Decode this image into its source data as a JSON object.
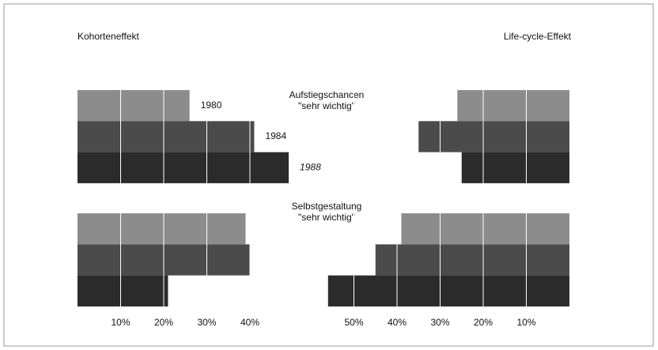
{
  "chart_data": [
    {
      "type": "bar",
      "orientation": "horizontal",
      "title": "Kohorteneffekt",
      "categories": [
        [
          "Aufstiegschancen",
          "\"sehr wichtig\""
        ],
        [
          "Selbstgestaltung",
          "\"sehr wichtig\""
        ]
      ],
      "series": [
        {
          "name": "1980",
          "color": "#8c8c8c",
          "values": [
            26,
            39
          ]
        },
        {
          "name": "1984",
          "color": "#4b4b4b",
          "values": [
            41,
            40
          ]
        },
        {
          "name": "1988",
          "color": "#2b2b2b",
          "values": [
            49,
            21
          ]
        }
      ],
      "xlim": [
        0,
        50
      ],
      "xticks": [
        {
          "value": 10,
          "label": "10%"
        },
        {
          "value": 20,
          "label": "20%"
        },
        {
          "value": 30,
          "label": "30%"
        },
        {
          "value": 40,
          "label": "40%"
        }
      ],
      "grid": true
    },
    {
      "type": "bar",
      "orientation": "horizontal",
      "title": "Life-cycle-Effekt",
      "x_reversed": true,
      "series": [
        {
          "color": "#8c8c8c",
          "values": [
            26,
            39
          ]
        },
        {
          "color": "#4b4b4b",
          "values": [
            35,
            45
          ]
        },
        {
          "color": "#2b2b2b",
          "values": [
            25,
            56
          ]
        }
      ],
      "xlim": [
        0,
        60
      ],
      "xticks": [
        {
          "value": 10,
          "label": "10%"
        },
        {
          "value": 20,
          "label": "20%"
        },
        {
          "value": 30,
          "label": "30%"
        },
        {
          "value": 40,
          "label": "40%"
        },
        {
          "value": 50,
          "label": "50%"
        }
      ],
      "grid": true
    }
  ]
}
